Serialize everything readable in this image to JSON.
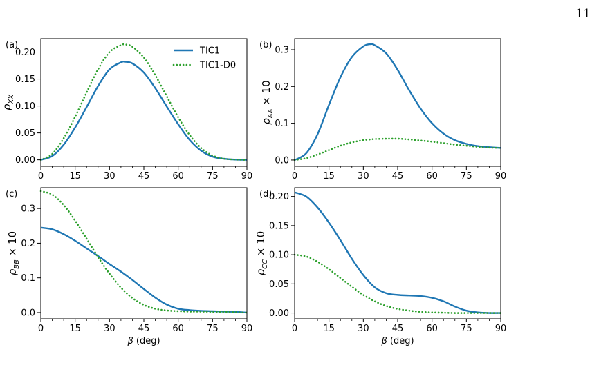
{
  "page_number": "11",
  "colors": {
    "tic1": "#1f77b4",
    "tic1_d0": "#2ca02c"
  },
  "chart_data": [
    {
      "panel": "(a)",
      "type": "line",
      "xlabel": "",
      "ylabel": "ρ_XX",
      "xlim": [
        0,
        90
      ],
      "ylim": [
        -0.012,
        0.225
      ],
      "xticks": [
        0,
        15,
        30,
        45,
        60,
        75,
        90
      ],
      "yticks": [
        "0.00",
        "0.05",
        "0.10",
        "0.15",
        "0.20"
      ],
      "legend": {
        "position": "top-right",
        "entries": [
          "TIC1",
          "TIC1-D0"
        ]
      },
      "grid": false,
      "x": [
        0,
        5,
        10,
        15,
        20,
        25,
        30,
        35,
        37,
        40,
        45,
        50,
        55,
        60,
        65,
        70,
        75,
        80,
        85,
        90
      ],
      "series": [
        {
          "name": "TIC1",
          "style": "solid",
          "values": [
            0.0,
            0.007,
            0.028,
            0.06,
            0.098,
            0.137,
            0.168,
            0.181,
            0.182,
            0.179,
            0.162,
            0.133,
            0.099,
            0.066,
            0.037,
            0.017,
            0.006,
            0.002,
            0.0005,
            0.0
          ]
        },
        {
          "name": "TIC1-D0",
          "style": "dotted",
          "values": [
            0.0,
            0.011,
            0.04,
            0.08,
            0.125,
            0.168,
            0.2,
            0.213,
            0.214,
            0.21,
            0.19,
            0.157,
            0.118,
            0.079,
            0.046,
            0.022,
            0.008,
            0.002,
            0.0005,
            0.0
          ]
        }
      ]
    },
    {
      "panel": "(b)",
      "type": "line",
      "xlabel": "",
      "ylabel": "ρ_AA × 10",
      "xlim": [
        0,
        90
      ],
      "ylim": [
        -0.017,
        0.33
      ],
      "xticks": [
        0,
        15,
        30,
        45,
        60,
        75,
        90
      ],
      "yticks": [
        "0.0",
        "0.1",
        "0.2",
        "0.3"
      ],
      "grid": false,
      "x": [
        0,
        5,
        10,
        15,
        20,
        25,
        30,
        33,
        35,
        40,
        45,
        50,
        55,
        60,
        65,
        70,
        75,
        80,
        85,
        90
      ],
      "series": [
        {
          "name": "TIC1",
          "style": "solid",
          "values": [
            0.0,
            0.018,
            0.07,
            0.15,
            0.225,
            0.28,
            0.309,
            0.315,
            0.312,
            0.29,
            0.245,
            0.19,
            0.14,
            0.1,
            0.072,
            0.054,
            0.044,
            0.038,
            0.035,
            0.033
          ]
        },
        {
          "name": "TIC1-D0",
          "style": "dotted",
          "values": [
            0.0,
            0.005,
            0.015,
            0.027,
            0.039,
            0.048,
            0.054,
            0.056,
            0.057,
            0.058,
            0.058,
            0.056,
            0.053,
            0.05,
            0.046,
            0.042,
            0.039,
            0.036,
            0.034,
            0.033
          ]
        }
      ]
    },
    {
      "panel": "(c)",
      "type": "line",
      "xlabel": "β (deg)",
      "ylabel": "ρ_BB × 10",
      "xlim": [
        0,
        90
      ],
      "ylim": [
        -0.018,
        0.36
      ],
      "xticks": [
        0,
        15,
        30,
        45,
        60,
        75,
        90
      ],
      "yticks": [
        "0.0",
        "0.1",
        "0.2",
        "0.3"
      ],
      "grid": false,
      "x": [
        0,
        5,
        10,
        15,
        20,
        25,
        30,
        35,
        40,
        45,
        50,
        55,
        60,
        65,
        70,
        75,
        80,
        85,
        90
      ],
      "series": [
        {
          "name": "TIC1",
          "style": "solid",
          "values": [
            0.245,
            0.24,
            0.226,
            0.207,
            0.185,
            0.163,
            0.14,
            0.118,
            0.094,
            0.068,
            0.043,
            0.023,
            0.011,
            0.007,
            0.005,
            0.004,
            0.003,
            0.002,
            0.0
          ]
        },
        {
          "name": "TIC1-D0",
          "style": "dotted",
          "values": [
            0.35,
            0.34,
            0.31,
            0.265,
            0.213,
            0.16,
            0.112,
            0.072,
            0.042,
            0.022,
            0.011,
            0.006,
            0.004,
            0.003,
            0.003,
            0.002,
            0.002,
            0.001,
            0.0
          ]
        }
      ]
    },
    {
      "panel": "(d)",
      "type": "line",
      "xlabel": "β (deg)",
      "ylabel": "ρ_CC × 10",
      "xlim": [
        0,
        90
      ],
      "ylim": [
        -0.01,
        0.215
      ],
      "xticks": [
        0,
        15,
        30,
        45,
        60,
        75,
        90
      ],
      "yticks": [
        "0.00",
        "0.05",
        "0.10",
        "0.15",
        "0.20"
      ],
      "grid": false,
      "x": [
        0,
        5,
        10,
        15,
        20,
        25,
        30,
        35,
        40,
        45,
        50,
        55,
        60,
        65,
        70,
        75,
        80,
        85,
        90
      ],
      "series": [
        {
          "name": "TIC1",
          "style": "solid",
          "values": [
            0.207,
            0.2,
            0.181,
            0.155,
            0.125,
            0.093,
            0.065,
            0.044,
            0.034,
            0.031,
            0.03,
            0.029,
            0.026,
            0.02,
            0.011,
            0.004,
            0.001,
            0.0,
            0.0
          ]
        },
        {
          "name": "TIC1-D0",
          "style": "dotted",
          "values": [
            0.1,
            0.097,
            0.088,
            0.075,
            0.06,
            0.045,
            0.031,
            0.02,
            0.012,
            0.007,
            0.004,
            0.002,
            0.001,
            0.0005,
            0.0,
            0.0,
            0.0,
            0.0,
            0.0
          ]
        }
      ]
    }
  ]
}
